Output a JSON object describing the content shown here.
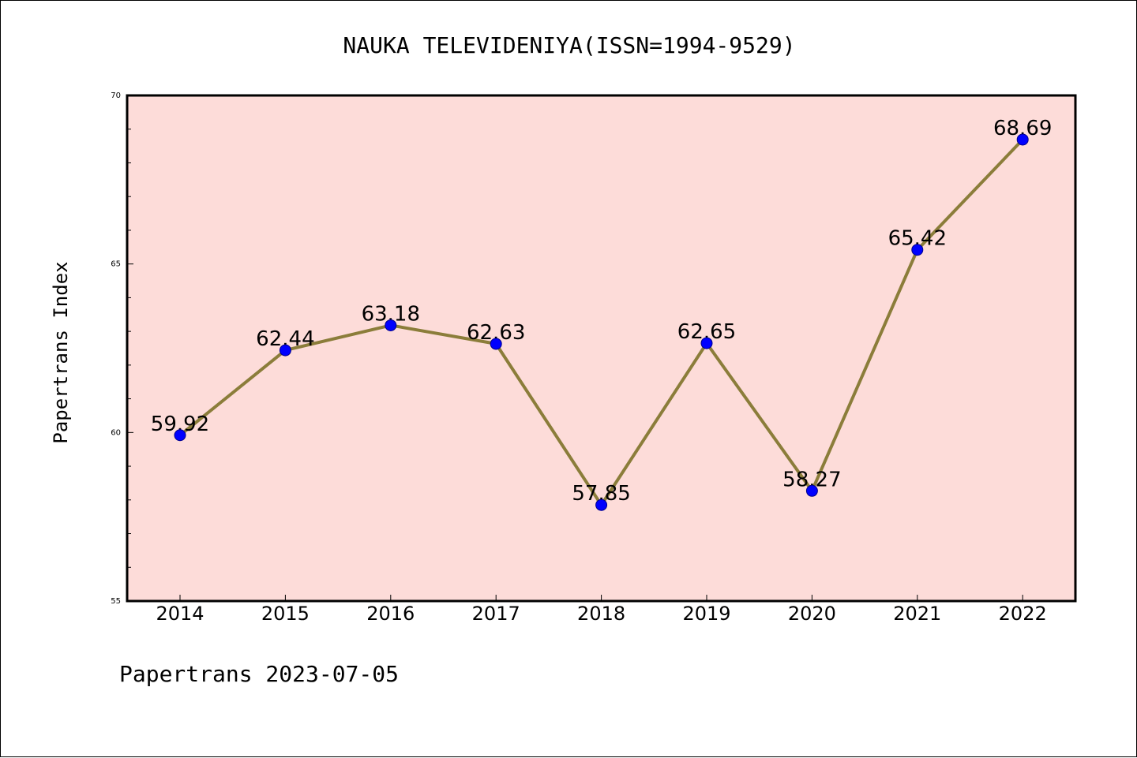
{
  "chart_data": {
    "type": "line",
    "title": "NAUKA TELEVIDENIYA(ISSN=1994-9529)",
    "xlabel": "",
    "ylabel": "Papertrans Index",
    "categories": [
      "2014",
      "2015",
      "2016",
      "2017",
      "2018",
      "2019",
      "2020",
      "2021",
      "2022"
    ],
    "series": [
      {
        "values": [
          59.92,
          62.44,
          63.18,
          62.63,
          57.85,
          62.65,
          58.27,
          65.42,
          68.69
        ]
      }
    ],
    "data_labels": [
      "59.92",
      "62.44",
      "63.18",
      "62.63",
      "57.85",
      "62.65",
      "58.27",
      "65.42",
      "68.69"
    ],
    "ylim": [
      55,
      70
    ],
    "yticks": [
      55,
      60,
      65,
      70
    ],
    "grid": false,
    "colors": {
      "line": "#8b7d3a",
      "marker": "#0000ff",
      "plot_bg": "#fddcd9",
      "marker_edge": "#00008b"
    },
    "footer": "Papertrans 2023-07-05"
  }
}
